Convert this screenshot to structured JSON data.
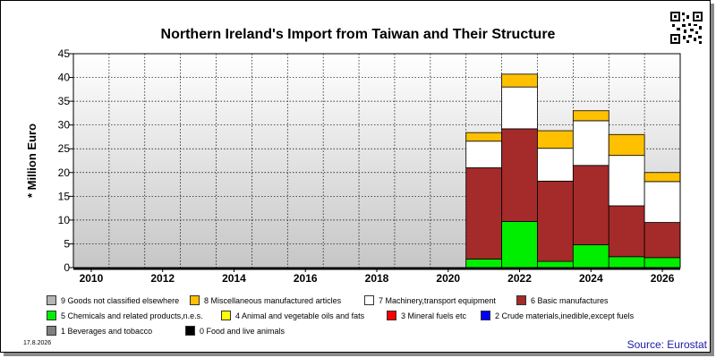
{
  "title": "Northern Ireland's Import from Taiwan and Their Structure",
  "footer": {
    "date": "17.8.2026",
    "source": "Source: Eurostat"
  },
  "chart_data": {
    "type": "bar",
    "stacked": true,
    "title": "Northern Ireland's Import from Taiwan and Their Structure",
    "xlabel": "",
    "ylabel": "* Million Euro",
    "ylim": [
      0,
      45
    ],
    "yticks": [
      0,
      5,
      10,
      15,
      20,
      25,
      30,
      35,
      40,
      45
    ],
    "xlim": [
      2009.5,
      2026.5
    ],
    "xticks": [
      2010,
      2012,
      2014,
      2016,
      2018,
      2020,
      2022,
      2024,
      2026
    ],
    "grid": true,
    "legend_position": "bottom",
    "categories": [
      2021,
      2022,
      2023,
      2024,
      2025,
      2026
    ],
    "series": [
      {
        "name": "5 Chemicals and related products,n.e.s.",
        "color": "#00ee00",
        "values": [
          1.8,
          9.7,
          1.3,
          4.8,
          2.3,
          2.1
        ]
      },
      {
        "name": "6 Basic manufactures",
        "color": "#a52a2a",
        "values": [
          19.2,
          19.5,
          16.9,
          16.7,
          10.7,
          7.4
        ]
      },
      {
        "name": "7 Machinery,transport equipment",
        "color": "#ffffff",
        "values": [
          5.6,
          8.8,
          6.9,
          9.4,
          10.6,
          8.6
        ]
      },
      {
        "name": "8 Miscellaneous manufactured articles",
        "color": "#ffc000",
        "values": [
          1.8,
          2.7,
          3.7,
          2.1,
          4.4,
          1.9
        ]
      }
    ]
  },
  "legend": [
    {
      "label": "9 Goods not classified elsewhere",
      "color": "#b4b4b4"
    },
    {
      "label": "8 Miscellaneous manufactured articles",
      "color": "#ffc000"
    },
    {
      "label": "7 Machinery,transport equipment",
      "color": "#ffffff"
    },
    {
      "label": "6 Basic manufactures",
      "color": "#a52a2a"
    },
    {
      "label": "5 Chemicals and related products,n.e.s.",
      "color": "#00ee00"
    },
    {
      "label": "4 Animal and vegetable oils and fats",
      "color": "#ffff00"
    },
    {
      "label": "3 Mineral fuels etc",
      "color": "#ff0000"
    },
    {
      "label": "2 Crude materials,inedible,except fuels",
      "color": "#0000ff"
    },
    {
      "label": "1 Beverages and tobacco",
      "color": "#808080"
    },
    {
      "label": "0 Food and live animals",
      "color": "#000000"
    }
  ]
}
